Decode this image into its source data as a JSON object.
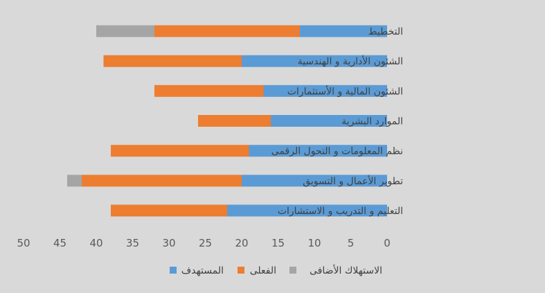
{
  "chart_data": {
    "type": "bar",
    "orientation": "horizontal",
    "stacked": true,
    "x_reversed": true,
    "categories": [
      "التخطيط",
      "الشئون الأدارية و الهندسية",
      "الشئون المالية و الأستثمارات",
      "الموارد البشرية",
      "نظم المعلومات و التحول الرقمى",
      "تطوير الأعمال و التسويق",
      "التعليم و التدريب و الاستشارات"
    ],
    "series": [
      {
        "name": "المستهدف",
        "color": "#5b9bd5",
        "values": [
          12,
          20,
          17,
          16,
          19,
          20,
          22
        ]
      },
      {
        "name": "الفعلى",
        "color": "#ed7d31",
        "values": [
          20,
          19,
          15,
          10,
          19,
          22,
          16
        ]
      },
      {
        "name": "الاستهلاك الأضافى",
        "color": "#a5a5a5",
        "values": [
          8,
          0,
          0,
          0,
          0,
          2,
          0
        ]
      }
    ],
    "xlim": [
      0,
      50
    ],
    "xticks": [
      "0",
      "5",
      "10",
      "15",
      "20",
      "25",
      "30",
      "35",
      "40",
      "45",
      "50"
    ],
    "grid": false,
    "legend_position": "bottom"
  }
}
